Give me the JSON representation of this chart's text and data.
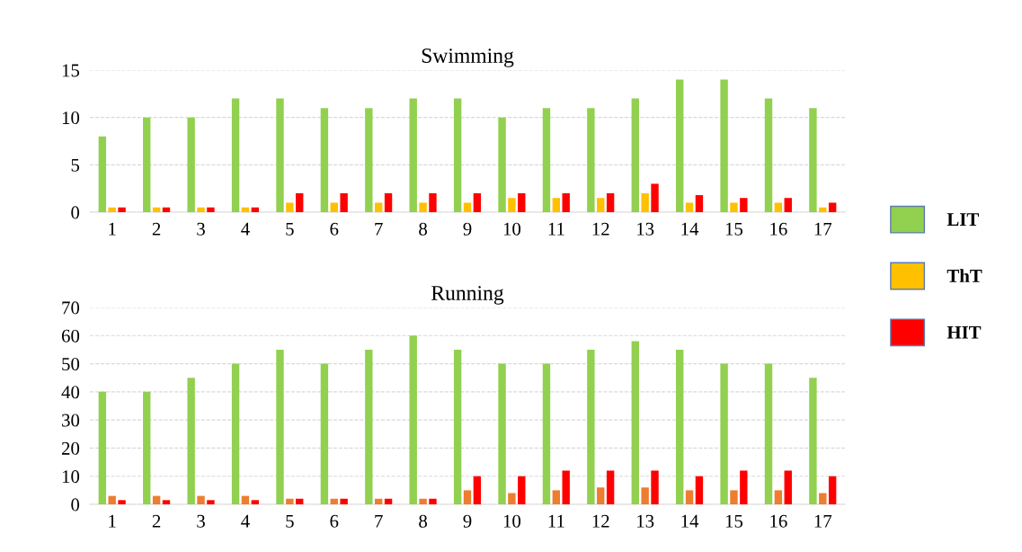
{
  "chart_data": [
    {
      "type": "bar",
      "title": "Swimming",
      "categories": [
        "1",
        "2",
        "3",
        "4",
        "5",
        "6",
        "7",
        "8",
        "9",
        "10",
        "11",
        "12",
        "13",
        "14",
        "15",
        "16",
        "17"
      ],
      "series": [
        {
          "name": "LIT",
          "color": "#92d050",
          "values": [
            8,
            10,
            10,
            12,
            12,
            11,
            11,
            12,
            12,
            10,
            11,
            11,
            12,
            14,
            14,
            12,
            11
          ]
        },
        {
          "name": "ThT",
          "color": "#ffc000",
          "values": [
            0.5,
            0.5,
            0.5,
            0.5,
            1,
            1,
            1,
            1,
            1,
            1.5,
            1.5,
            1.5,
            2,
            1,
            1,
            1,
            0.5
          ]
        },
        {
          "name": "HIT",
          "color": "#ff0000",
          "values": [
            0.5,
            0.5,
            0.5,
            0.5,
            2,
            2,
            2,
            2,
            2,
            2,
            2,
            2,
            3,
            1.8,
            1.5,
            1.5,
            1
          ]
        }
      ],
      "ylim": [
        0,
        15
      ],
      "yticks": [
        0,
        5,
        10,
        15
      ],
      "grid": "y",
      "legend": "right"
    },
    {
      "type": "bar",
      "title": "Running",
      "categories": [
        "1",
        "2",
        "3",
        "4",
        "5",
        "6",
        "7",
        "8",
        "9",
        "10",
        "11",
        "12",
        "13",
        "14",
        "15",
        "16",
        "17"
      ],
      "series": [
        {
          "color": "#92d050",
          "values": [
            40,
            40,
            45,
            50,
            55,
            50,
            55,
            60,
            55,
            50,
            50,
            55,
            58,
            55,
            50,
            50,
            45
          ]
        },
        {
          "color": "#ed7d31",
          "values": [
            3,
            3,
            3,
            3,
            2,
            2,
            2,
            2,
            5,
            4,
            5,
            6,
            6,
            5,
            5,
            5,
            4
          ]
        },
        {
          "color": "#ff0000",
          "values": [
            1.5,
            1.5,
            1.5,
            1.5,
            2,
            2,
            2,
            2,
            10,
            10,
            12,
            12,
            12,
            10,
            12,
            12,
            10
          ]
        }
      ],
      "ylim": [
        0,
        70
      ],
      "yticks": [
        0,
        10,
        20,
        30,
        40,
        50,
        60,
        70
      ],
      "grid": "y"
    }
  ]
}
